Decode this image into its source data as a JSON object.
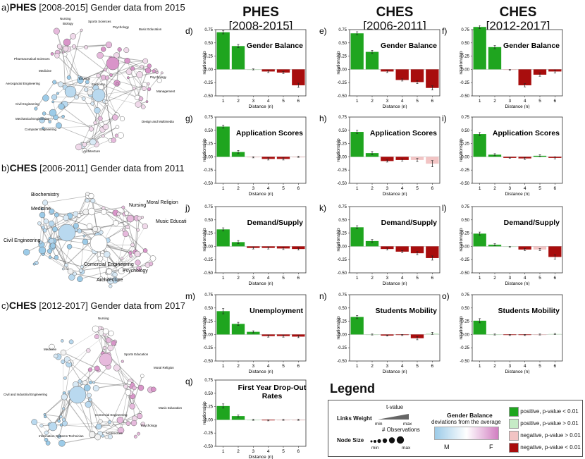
{
  "sections": {
    "a": {
      "letter": "a)",
      "bold": "PHES",
      "rest": "[2008-2015] Gender data from 2015"
    },
    "b": {
      "letter": "b)",
      "bold": "CHES",
      "rest": "[2006-2011] Gender data from 2011"
    },
    "c": {
      "letter": "c)",
      "bold": "CHES",
      "rest": "[2012-2017] Gender data from 2017"
    }
  },
  "network_labels": {
    "a": [
      "Nursing",
      "Biology",
      "Sports Sciences",
      "Psychology",
      "Basic Education",
      "Pharmaceutical Sciences",
      "Medicine",
      "Ecology",
      "Economy",
      "Psychology",
      "Aerospacial Engineering",
      "Management",
      "Civil Engineering",
      "Mechanical Engineering",
      "Computer Engineering",
      "Design and Multimedia",
      "Architecture"
    ],
    "b": [
      "Biochemistry",
      "Nursing",
      "Moral Religion",
      "Medicine",
      "Music Education",
      "Civil Engineering",
      "Comercial Engineering",
      "Psychology",
      "Architecture"
    ],
    "c": [
      "Nursing",
      "Medicine",
      "Sports Education",
      "Moral Religion",
      "Civil and Industrial Engineering",
      "Music Education",
      "Comercial Engineering",
      "Psychology",
      "Information Systems Technician",
      "Architecture"
    ]
  },
  "columns": [
    {
      "name": "PHES",
      "period": "[2008-2015]"
    },
    {
      "name": "CHES",
      "period": "[2006-2011]"
    },
    {
      "name": "CHES",
      "period": "[2012-2017]"
    }
  ],
  "colors": {
    "pos_sig": "#1fa51f",
    "pos_ns": "#c6ebc6",
    "neg_ns": "#f2c4c4",
    "neg_sig": "#a80d0d"
  },
  "legend": {
    "title": "Legend",
    "links_weight": "Links Weight",
    "t_value": "t-value",
    "min": "min",
    "max": "max",
    "node_size": "Node Size",
    "n_obs": "# Observations",
    "gender_balance": "Gender Balance",
    "deviations": "deviations from the average",
    "m": "M",
    "f": "F",
    "items": [
      {
        "label": "positive, p-value < 0.01",
        "color": "#1fa51f"
      },
      {
        "label": "positive, p-value > 0.01",
        "color": "#c6ebc6"
      },
      {
        "label": "negative, p-value > 0.01",
        "color": "#f2c4c4"
      },
      {
        "label": "negative, p-value < 0.01",
        "color": "#a80d0d"
      }
    ]
  },
  "chart_data": [
    {
      "id": "d",
      "letter": "d)",
      "type": "bar",
      "title": "Gender Balance",
      "xlabel": "Distance (n)",
      "ylabel": "relationship",
      "categories": [
        "1",
        "2",
        "3",
        "4",
        "5",
        "6"
      ],
      "values": [
        0.7,
        0.44,
        0.0,
        -0.04,
        -0.06,
        -0.3
      ],
      "errors": [
        0.03,
        0.03,
        0.01,
        0.02,
        0.02,
        0.04
      ],
      "significance": [
        "pos_sig",
        "pos_sig",
        "pos_ns",
        "neg_sig",
        "neg_sig",
        "neg_sig"
      ],
      "ylim": [
        -0.5,
        0.75
      ],
      "yticks": [
        "0.75",
        "0.50",
        "0.25",
        "0.00",
        "-0.25",
        "-0.50"
      ]
    },
    {
      "id": "e",
      "letter": "e)",
      "type": "bar",
      "title": "Gender Balance",
      "xlabel": "Distance (n)",
      "ylabel": "relationship",
      "categories": [
        "1",
        "2",
        "3",
        "4",
        "5",
        "6"
      ],
      "values": [
        0.68,
        0.33,
        -0.04,
        -0.2,
        -0.24,
        -0.35
      ],
      "errors": [
        0.03,
        0.03,
        0.02,
        0.02,
        0.03,
        0.04
      ],
      "significance": [
        "pos_sig",
        "pos_sig",
        "neg_sig",
        "neg_sig",
        "neg_sig",
        "neg_sig"
      ],
      "ylim": [
        -0.5,
        0.75
      ],
      "yticks": [
        "0.75",
        "0.50",
        "0.25",
        "0.00",
        "-0.25",
        "-0.50"
      ]
    },
    {
      "id": "f",
      "letter": "f)",
      "type": "bar",
      "title": "Gender Balance",
      "xlabel": "Distance (n)",
      "ylabel": "relationship",
      "categories": [
        "1",
        "2",
        "3",
        "4",
        "5",
        "6"
      ],
      "values": [
        0.8,
        0.42,
        -0.01,
        -0.3,
        -0.1,
        -0.04
      ],
      "errors": [
        0.03,
        0.03,
        0.01,
        0.03,
        0.03,
        0.03
      ],
      "significance": [
        "pos_sig",
        "pos_sig",
        "neg_ns",
        "neg_sig",
        "neg_sig",
        "neg_sig"
      ],
      "ylim": [
        -0.5,
        0.75
      ],
      "yticks": [
        "0.75",
        "0.50",
        "0.25",
        "0.00",
        "-0.25",
        "-0.50"
      ]
    },
    {
      "id": "g",
      "letter": "g)",
      "type": "bar",
      "title": "Application Scores",
      "xlabel": "Distance (n)",
      "ylabel": "relationship",
      "categories": [
        "1",
        "2",
        "3",
        "4",
        "5",
        "6"
      ],
      "values": [
        0.57,
        0.09,
        -0.01,
        -0.04,
        -0.04,
        0.0
      ],
      "errors": [
        0.03,
        0.03,
        0.01,
        0.02,
        0.02,
        0.01
      ],
      "significance": [
        "pos_sig",
        "pos_sig",
        "neg_ns",
        "neg_sig",
        "neg_sig",
        "neg_ns"
      ],
      "ylim": [
        -0.5,
        0.75
      ],
      "yticks": [
        "0.75",
        "0.50",
        "0.25",
        "0.00",
        "-0.25",
        "-0.50"
      ]
    },
    {
      "id": "h",
      "letter": "h)",
      "type": "bar",
      "title": "Application Scores",
      "xlabel": "Distance (n)",
      "ylabel": "relationship",
      "categories": [
        "1",
        "2",
        "3",
        "4",
        "5",
        "6"
      ],
      "values": [
        0.47,
        0.07,
        -0.08,
        -0.06,
        -0.06,
        -0.13
      ],
      "errors": [
        0.03,
        0.03,
        0.02,
        0.02,
        0.03,
        0.06
      ],
      "significance": [
        "pos_sig",
        "pos_sig",
        "neg_sig",
        "neg_sig",
        "neg_ns",
        "neg_ns"
      ],
      "ylim": [
        -0.5,
        0.75
      ],
      "yticks": [
        "0.75",
        "0.50",
        "0.25",
        "0.00",
        "-0.25",
        "-0.50"
      ]
    },
    {
      "id": "i",
      "letter": "i)",
      "type": "bar",
      "title": "Application Scores",
      "xlabel": "Distance (n)",
      "ylabel": "relationship",
      "categories": [
        "1",
        "2",
        "3",
        "4",
        "5",
        "6"
      ],
      "values": [
        0.43,
        0.04,
        -0.02,
        -0.03,
        0.02,
        -0.02
      ],
      "errors": [
        0.03,
        0.02,
        0.01,
        0.02,
        0.02,
        0.02
      ],
      "significance": [
        "pos_sig",
        "pos_sig",
        "neg_sig",
        "neg_sig",
        "pos_sig",
        "neg_sig"
      ],
      "ylim": [
        -0.5,
        0.75
      ],
      "yticks": [
        "0.75",
        "0.50",
        "0.25",
        "0.00",
        "-0.25",
        "-0.50"
      ]
    },
    {
      "id": "j",
      "letter": "j)",
      "type": "bar",
      "title": "Demand/Supply",
      "xlabel": "Distance (n)",
      "ylabel": "relationship",
      "categories": [
        "1",
        "2",
        "3",
        "4",
        "5",
        "6"
      ],
      "values": [
        0.32,
        0.08,
        -0.03,
        -0.03,
        -0.04,
        -0.05
      ],
      "errors": [
        0.03,
        0.03,
        0.02,
        0.02,
        0.02,
        0.02
      ],
      "significance": [
        "pos_sig",
        "pos_sig",
        "neg_sig",
        "neg_sig",
        "neg_sig",
        "neg_sig"
      ],
      "ylim": [
        -0.5,
        0.75
      ],
      "yticks": [
        "0.75",
        "0.50",
        "0.25",
        "0.00",
        "-0.25",
        "-0.50"
      ]
    },
    {
      "id": "k",
      "letter": "k)",
      "type": "bar",
      "title": "Demand/Supply",
      "xlabel": "Distance (n)",
      "ylabel": "relationship",
      "categories": [
        "1",
        "2",
        "3",
        "4",
        "5",
        "6"
      ],
      "values": [
        0.36,
        0.1,
        -0.05,
        -0.1,
        -0.13,
        -0.22
      ],
      "errors": [
        0.03,
        0.03,
        0.02,
        0.02,
        0.03,
        0.04
      ],
      "significance": [
        "pos_sig",
        "pos_sig",
        "neg_sig",
        "neg_sig",
        "neg_sig",
        "neg_sig"
      ],
      "ylim": [
        -0.5,
        0.75
      ],
      "yticks": [
        "0.75",
        "0.50",
        "0.25",
        "0.00",
        "-0.25",
        "-0.50"
      ]
    },
    {
      "id": "l",
      "letter": "l)",
      "type": "bar",
      "title": "Demand/Supply",
      "xlabel": "Distance (n)",
      "ylabel": "relationship",
      "categories": [
        "1",
        "2",
        "3",
        "4",
        "5",
        "6"
      ],
      "values": [
        0.24,
        0.03,
        -0.01,
        -0.06,
        -0.06,
        -0.2
      ],
      "errors": [
        0.03,
        0.02,
        0.01,
        0.02,
        0.02,
        0.04
      ],
      "significance": [
        "pos_sig",
        "pos_sig",
        "pos_ns",
        "neg_sig",
        "neg_ns",
        "neg_sig"
      ],
      "ylim": [
        -0.5,
        0.75
      ],
      "yticks": [
        "0.75",
        "0.50",
        "0.25",
        "0.00",
        "-0.25",
        "-0.50"
      ]
    },
    {
      "id": "m",
      "letter": "m)",
      "type": "bar",
      "title": "Unemployment",
      "xlabel": "Distance (n)",
      "ylabel": "relationship",
      "categories": [
        "1",
        "2",
        "3",
        "4",
        "5",
        "6"
      ],
      "values": [
        0.44,
        0.2,
        0.05,
        -0.03,
        -0.03,
        -0.04
      ],
      "errors": [
        0.05,
        0.03,
        0.02,
        0.02,
        0.02,
        0.02
      ],
      "significance": [
        "pos_sig",
        "pos_sig",
        "pos_sig",
        "neg_sig",
        "neg_sig",
        "neg_sig"
      ],
      "ylim": [
        -0.5,
        0.75
      ],
      "yticks": [
        "0.75",
        "0.50",
        "0.25",
        "0.00",
        "-0.25",
        "-0.50"
      ]
    },
    {
      "id": "n",
      "letter": "n)",
      "type": "bar",
      "title": "Students Mobility",
      "xlabel": "Distance (n)",
      "ylabel": "relationship",
      "categories": [
        "1",
        "2",
        "3",
        "4",
        "5",
        "6"
      ],
      "values": [
        0.33,
        0.0,
        -0.02,
        -0.01,
        -0.07,
        0.02
      ],
      "errors": [
        0.03,
        0.01,
        0.01,
        0.01,
        0.03,
        0.02
      ],
      "significance": [
        "pos_sig",
        "pos_ns",
        "neg_sig",
        "neg_sig",
        "neg_sig",
        "pos_ns"
      ],
      "ylim": [
        -0.5,
        0.75
      ],
      "yticks": [
        "0.75",
        "0.50",
        "0.25",
        "0.00",
        "-0.25",
        "-0.50"
      ]
    },
    {
      "id": "o",
      "letter": "o)",
      "type": "bar",
      "title": "Students Mobility",
      "xlabel": "Distance (n)",
      "ylabel": "relationship",
      "categories": [
        "1",
        "2",
        "3",
        "4",
        "5",
        "6"
      ],
      "values": [
        0.26,
        0.0,
        -0.01,
        -0.01,
        0.0,
        0.01
      ],
      "errors": [
        0.04,
        0.01,
        0.01,
        0.01,
        0.01,
        0.01
      ],
      "significance": [
        "pos_sig",
        "pos_ns",
        "neg_sig",
        "neg_sig",
        "neg_ns",
        "pos_ns"
      ],
      "ylim": [
        -0.5,
        0.75
      ],
      "yticks": [
        "0.75",
        "0.50",
        "0.25",
        "0.00",
        "-0.25",
        "-0.50"
      ]
    },
    {
      "id": "q",
      "letter": "q)",
      "type": "bar",
      "title": "First Year Drop-Out Rates",
      "xlabel": "Distance (n)",
      "ylabel": "relationship",
      "categories": [
        "1",
        "2",
        "3",
        "4",
        "5",
        "6"
      ],
      "values": [
        0.26,
        0.07,
        0.0,
        -0.01,
        0.0,
        0.0
      ],
      "errors": [
        0.04,
        0.02,
        0.01,
        0.01,
        0.01,
        0.01
      ],
      "significance": [
        "pos_sig",
        "pos_sig",
        "pos_ns",
        "neg_sig",
        "neg_ns",
        "neg_ns"
      ],
      "ylim": [
        -0.5,
        0.75
      ],
      "yticks": [
        "0.75",
        "0.50",
        "0.25",
        "0.00",
        "-0.25",
        "-0.50"
      ]
    }
  ]
}
